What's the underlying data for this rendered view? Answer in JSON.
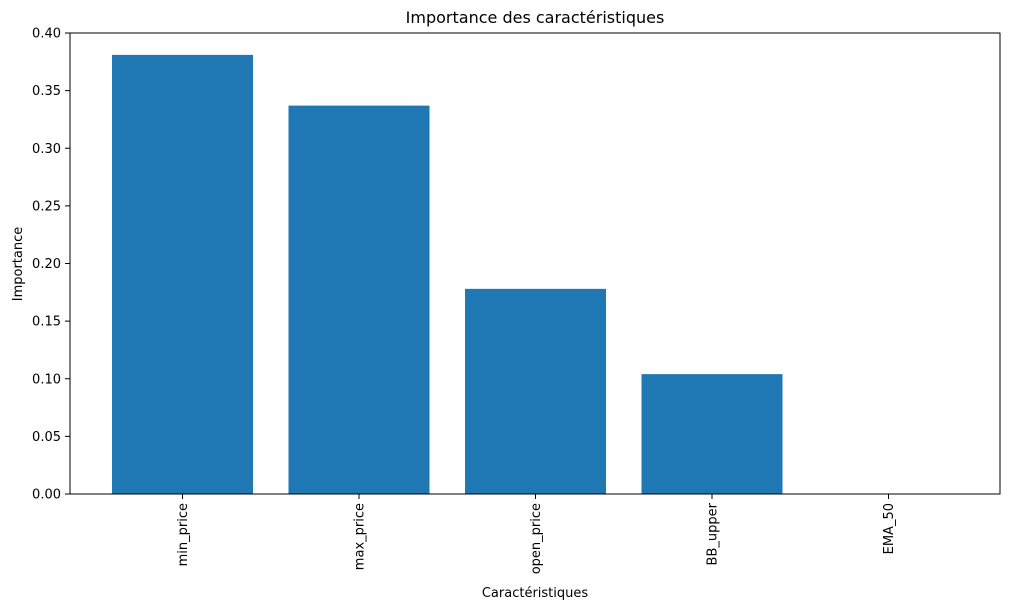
{
  "chart_data": {
    "type": "bar",
    "title": "Importance des caractéristiques",
    "xlabel": "Caractéristiques",
    "ylabel": "Importance",
    "categories": [
      "min_price",
      "max_price",
      "open_price",
      "BB_upper",
      "EMA_50"
    ],
    "values": [
      0.381,
      0.337,
      0.178,
      0.104,
      0.0
    ],
    "ylim": [
      0,
      0.4
    ],
    "yticks": [
      "0.00",
      "0.05",
      "0.10",
      "0.15",
      "0.20",
      "0.25",
      "0.30",
      "0.35",
      "0.40"
    ],
    "bar_color": "#1f77b4",
    "grid": false,
    "legend": "none",
    "x_tick_rotation": "vertical"
  }
}
